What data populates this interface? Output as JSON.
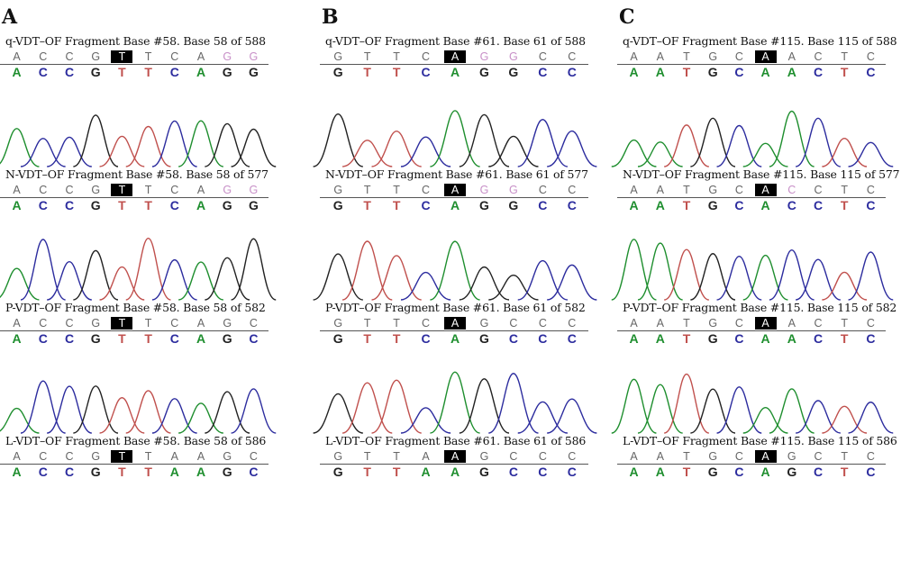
{
  "colors": {
    "A": "#1e8e2e",
    "C": "#2c2c9e",
    "G": "#222222",
    "T": "#c0504d",
    "top_G_alt": "#c890c8",
    "top_default": "#666666"
  },
  "panels": [
    {
      "letter": "A",
      "tracks": [
        {
          "title": "q-VDT–OF Fragment Base #58. Base 58 of 588",
          "top": [
            "A",
            "C",
            "C",
            "G",
            "T",
            "T",
            "C",
            "A",
            "G",
            "G"
          ],
          "bottom": [
            "A",
            "C",
            "C",
            "G",
            "T",
            "T",
            "C",
            "A",
            "G",
            "G"
          ],
          "highlight": 4,
          "pink_top": [
            8,
            9
          ]
        },
        {
          "title": "N-VDT–OF Fragment Base #58. Base 58 of 577",
          "top": [
            "A",
            "C",
            "C",
            "G",
            "T",
            "T",
            "C",
            "A",
            "G",
            "G"
          ],
          "bottom": [
            "A",
            "C",
            "C",
            "G",
            "T",
            "T",
            "C",
            "A",
            "G",
            "G"
          ],
          "highlight": 4,
          "pink_top": [
            8,
            9
          ]
        },
        {
          "title": "P-VDT–OF Fragment Base #58. Base 58 of 582",
          "top": [
            "A",
            "C",
            "C",
            "G",
            "T",
            "T",
            "C",
            "A",
            "G",
            "C"
          ],
          "bottom": [
            "A",
            "C",
            "C",
            "G",
            "T",
            "T",
            "C",
            "A",
            "G",
            "C"
          ],
          "highlight": 4,
          "pink_top": []
        },
        {
          "title": "L-VDT–OF Fragment Base #58. Base 58 of 586",
          "top": [
            "A",
            "C",
            "C",
            "G",
            "T",
            "T",
            "A",
            "A",
            "G",
            "C"
          ],
          "bottom": [
            "A",
            "C",
            "C",
            "G",
            "T",
            "T",
            "A",
            "A",
            "G",
            "C"
          ],
          "highlight": 4,
          "pink_top": []
        }
      ]
    },
    {
      "letter": "B",
      "tracks": [
        {
          "title": "q-VDT–OF Fragment Base #61. Base 61 of 588",
          "top": [
            "G",
            "T",
            "T",
            "C",
            "A",
            "G",
            "G",
            "C",
            "C"
          ],
          "bottom": [
            "G",
            "T",
            "T",
            "C",
            "A",
            "G",
            "G",
            "C",
            "C"
          ],
          "highlight": 4,
          "pink_top": [
            5,
            6
          ]
        },
        {
          "title": "N-VDT–OF Fragment Base #61. Base 61 of 577",
          "top": [
            "G",
            "T",
            "T",
            "C",
            "A",
            "G",
            "G",
            "C",
            "C"
          ],
          "bottom": [
            "G",
            "T",
            "T",
            "C",
            "A",
            "G",
            "G",
            "C",
            "C"
          ],
          "highlight": 4,
          "pink_top": [
            5,
            6
          ]
        },
        {
          "title": "P-VDT–OF Fragment Base #61. Base 61 of 582",
          "top": [
            "G",
            "T",
            "T",
            "C",
            "A",
            "G",
            "C",
            "C",
            "C"
          ],
          "bottom": [
            "G",
            "T",
            "T",
            "C",
            "A",
            "G",
            "C",
            "C",
            "C"
          ],
          "highlight": 4,
          "pink_top": []
        },
        {
          "title": "L-VDT–OF Fragment Base #61. Base 61 of 586",
          "top": [
            "G",
            "T",
            "T",
            "A",
            "A",
            "G",
            "C",
            "C",
            "C"
          ],
          "bottom": [
            "G",
            "T",
            "T",
            "A",
            "A",
            "G",
            "C",
            "C",
            "C"
          ],
          "highlight": 4,
          "pink_top": []
        }
      ]
    },
    {
      "letter": "C",
      "tracks": [
        {
          "title": "q-VDT–OF Fragment Base #115. Base 115 of 588",
          "top": [
            "A",
            "A",
            "T",
            "G",
            "C",
            "A",
            "A",
            "C",
            "T",
            "C"
          ],
          "bottom": [
            "A",
            "A",
            "T",
            "G",
            "C",
            "A",
            "A",
            "C",
            "T",
            "C"
          ],
          "highlight": 5,
          "pink_top": []
        },
        {
          "title": "N-VDT–OF Fragment Base #115. Base 115 of 577",
          "top": [
            "A",
            "A",
            "T",
            "G",
            "C",
            "A",
            "C",
            "C",
            "T",
            "C"
          ],
          "bottom": [
            "A",
            "A",
            "T",
            "G",
            "C",
            "A",
            "C",
            "C",
            "T",
            "C"
          ],
          "highlight": 5,
          "pink_top": [
            6
          ]
        },
        {
          "title": "P-VDT–OF Fragment Base #115. Base 115 of 582",
          "top": [
            "A",
            "A",
            "T",
            "G",
            "C",
            "A",
            "A",
            "C",
            "T",
            "C"
          ],
          "bottom": [
            "A",
            "A",
            "T",
            "G",
            "C",
            "A",
            "A",
            "C",
            "T",
            "C"
          ],
          "highlight": 5,
          "pink_top": []
        },
        {
          "title": "L-VDT–OF Fragment Base #115. Base 115 of 586",
          "top": [
            "A",
            "A",
            "T",
            "G",
            "C",
            "A",
            "G",
            "C",
            "T",
            "C"
          ],
          "bottom": [
            "A",
            "A",
            "T",
            "G",
            "C",
            "A",
            "G",
            "C",
            "T",
            "C"
          ],
          "highlight": 5,
          "pink_top": []
        }
      ]
    }
  ]
}
